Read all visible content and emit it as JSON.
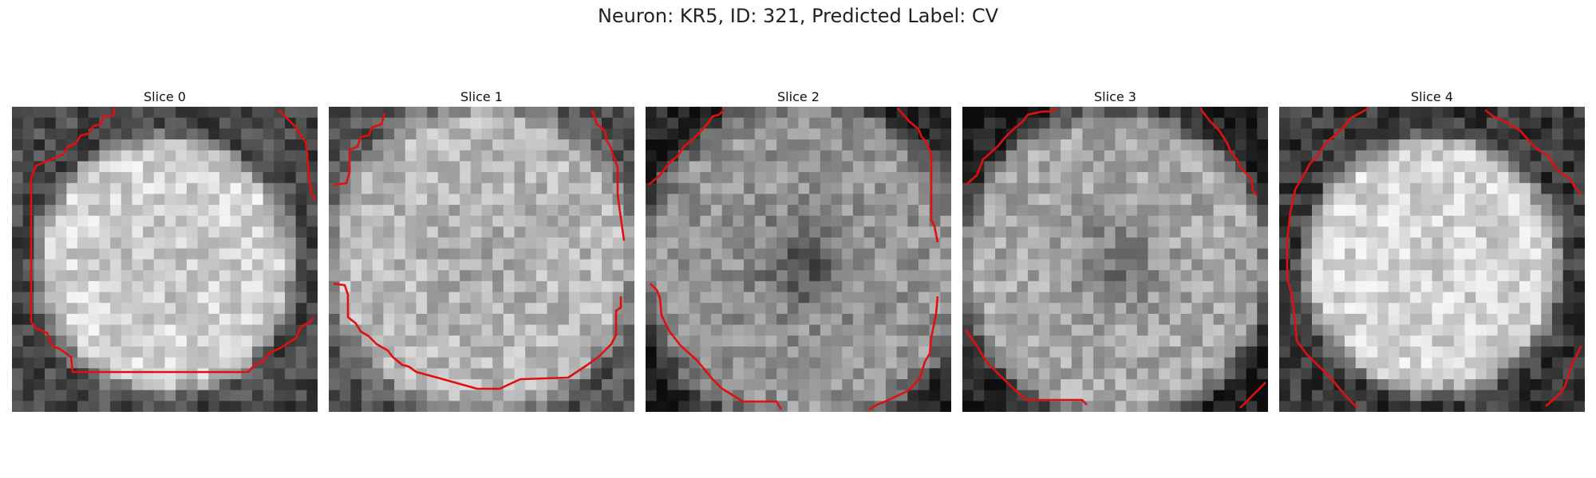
{
  "figure": {
    "title": "Neuron: KR5, ID: 321, Predicted Label: CV",
    "slices": [
      {
        "label": "Slice 0"
      },
      {
        "label": "Slice 1"
      },
      {
        "label": "Slice 2"
      },
      {
        "label": "Slice 3"
      },
      {
        "label": "Slice 4"
      }
    ]
  },
  "style": {
    "contour_color": "#e01010",
    "grayscale": true
  }
}
